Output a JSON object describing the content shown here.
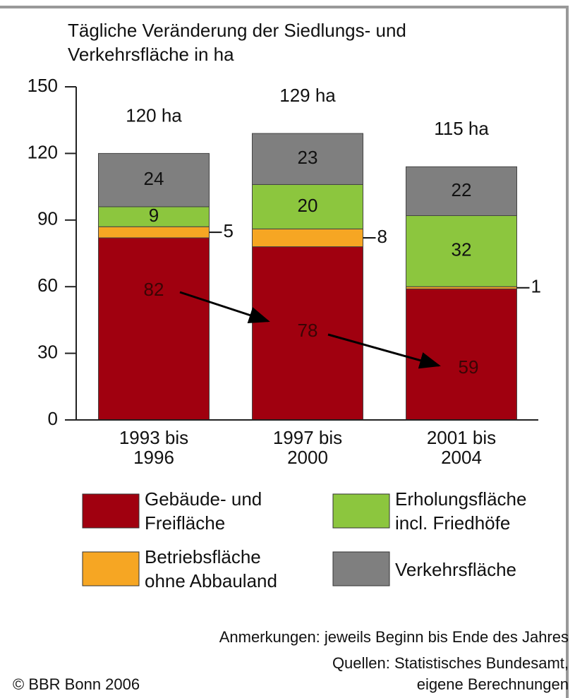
{
  "chart_data": {
    "type": "stacked_bar",
    "title": "Tägliche Veränderung der Siedlungs- und\nVerkehrsfläche in ha",
    "categories": [
      "1993 bis\n1996",
      "1997 bis\n2000",
      "2001 bis\n2004"
    ],
    "series": [
      {
        "name": "Gebäude- und\nFreifläche",
        "color": "#a0000f",
        "values": [
          82,
          78,
          59
        ]
      },
      {
        "name": "Betriebsfläche\nohne Abbauland",
        "color": "#f6a623",
        "values": [
          5,
          8,
          1
        ]
      },
      {
        "name": "Erholungsfläche\nincl. Friedhöfe",
        "color": "#8cc63e",
        "values": [
          9,
          20,
          32
        ]
      },
      {
        "name": "Verkehrsfläche",
        "color": "#7f7f7f",
        "values": [
          24,
          23,
          22
        ]
      }
    ],
    "annotations": [
      "120 ha",
      "129 ha",
      "115 ha"
    ],
    "ylim": [
      0,
      150
    ],
    "yticks": [
      0,
      30,
      60,
      90,
      120,
      150
    ],
    "notes": [
      "Anmerkungen: jeweils Beginn bis Ende des Jahres",
      "Quellen: Statistisches Bundesamt,\neigene Berechnungen"
    ],
    "source": "© BBR Bonn 2006"
  }
}
